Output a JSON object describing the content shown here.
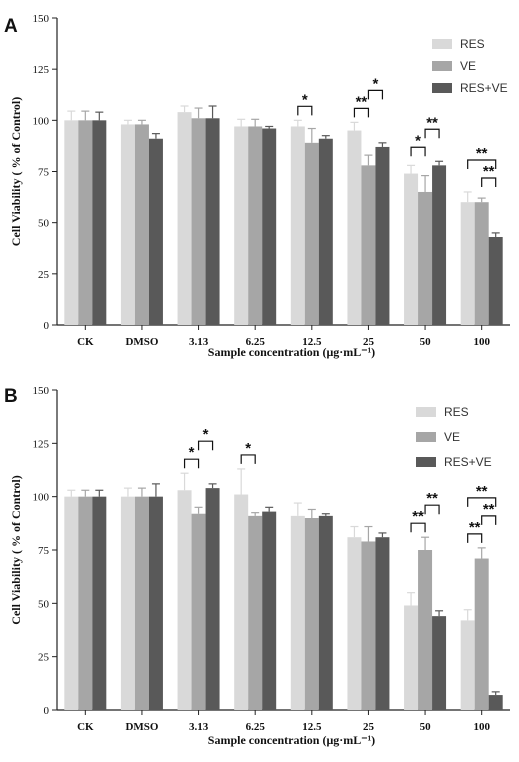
{
  "chart_data": [
    {
      "panel": "A",
      "type": "bar",
      "xlabel": "Sample concentration (μg·mL⁻¹)",
      "ylabel": "Cell Viability ( % of Control)",
      "ylim": [
        0,
        150
      ],
      "yticks": [
        "0",
        "25",
        "50",
        "75",
        "100",
        "125",
        "150"
      ],
      "categories": [
        "CK",
        "DMSO",
        "3.13",
        "6.25",
        "12.5",
        "25",
        "50",
        "100"
      ],
      "legend_position": "top-right",
      "series": [
        {
          "name": "RES",
          "color": "#d9d9d9",
          "values": [
            100,
            98,
            104,
            97,
            97,
            95,
            74,
            60
          ],
          "errors": [
            4.5,
            2,
            3,
            3.5,
            3,
            4,
            4,
            5
          ]
        },
        {
          "name": "VE",
          "color": "#a6a6a6",
          "values": [
            100,
            98,
            101,
            97,
            89,
            78,
            65,
            60
          ],
          "errors": [
            4.5,
            2,
            5,
            3.5,
            7,
            5,
            8,
            2
          ]
        },
        {
          "name": "RES+VE",
          "color": "#595959",
          "values": [
            100,
            91,
            101,
            96,
            91,
            87,
            78,
            43
          ],
          "errors": [
            4,
            2.5,
            6,
            1,
            1.5,
            2,
            2,
            2
          ]
        }
      ],
      "significance": [
        {
          "category": "12.5",
          "from": 0,
          "to": 1,
          "label": "*",
          "level": 0
        },
        {
          "category": "25",
          "from": 0,
          "to": 1,
          "label": "**",
          "level": 0
        },
        {
          "category": "25",
          "from": 1,
          "to": 2,
          "label": "*",
          "level": 1
        },
        {
          "category": "50",
          "from": 0,
          "to": 1,
          "label": "*",
          "level": 0
        },
        {
          "category": "50",
          "from": 1,
          "to": 2,
          "label": "**",
          "level": 1
        },
        {
          "category": "100",
          "from": 0,
          "to": 2,
          "label": "**",
          "level": 1
        },
        {
          "category": "100",
          "from": 1,
          "to": 2,
          "label": "**",
          "level": 0
        }
      ]
    },
    {
      "panel": "B",
      "type": "bar",
      "xlabel": "Sample concentration (μg·mL⁻¹)",
      "ylabel": "Cell Viability ( % of Control)",
      "ylim": [
        0,
        150
      ],
      "yticks": [
        "0",
        "25",
        "50",
        "75",
        "100",
        "125",
        "150"
      ],
      "categories": [
        "CK",
        "DMSO",
        "3.13",
        "6.25",
        "12.5",
        "25",
        "50",
        "100"
      ],
      "legend_position": "top-right",
      "series": [
        {
          "name": "RES",
          "color": "#d9d9d9",
          "values": [
            100,
            100,
            103,
            101,
            91,
            81,
            49,
            42
          ],
          "errors": [
            3,
            4,
            8,
            12,
            6,
            5,
            6,
            5
          ]
        },
        {
          "name": "VE",
          "color": "#a6a6a6",
          "values": [
            100,
            100,
            92,
            91,
            90,
            79,
            75,
            71
          ],
          "errors": [
            3,
            4,
            3,
            1.5,
            4,
            7,
            6,
            5
          ]
        },
        {
          "name": "RES+VE",
          "color": "#595959",
          "values": [
            100,
            100,
            104,
            93,
            91,
            81,
            44,
            7
          ],
          "errors": [
            3,
            6,
            2,
            2,
            1,
            2,
            2.5,
            1.5
          ]
        }
      ],
      "significance": [
        {
          "category": "3.13",
          "from": 0,
          "to": 1,
          "label": "*",
          "level": 0
        },
        {
          "category": "3.13",
          "from": 1,
          "to": 2,
          "label": "*",
          "level": 1
        },
        {
          "category": "6.25",
          "from": 0,
          "to": 1,
          "label": "*",
          "level": 0
        },
        {
          "category": "50",
          "from": 0,
          "to": 1,
          "label": "**",
          "level": 0
        },
        {
          "category": "50",
          "from": 1,
          "to": 2,
          "label": "**",
          "level": 1
        },
        {
          "category": "100",
          "from": 0,
          "to": 2,
          "label": "**",
          "level": 2
        },
        {
          "category": "100",
          "from": 0,
          "to": 1,
          "label": "**",
          "level": 0
        },
        {
          "category": "100",
          "from": 1,
          "to": 2,
          "label": "**",
          "level": 1
        }
      ]
    }
  ]
}
